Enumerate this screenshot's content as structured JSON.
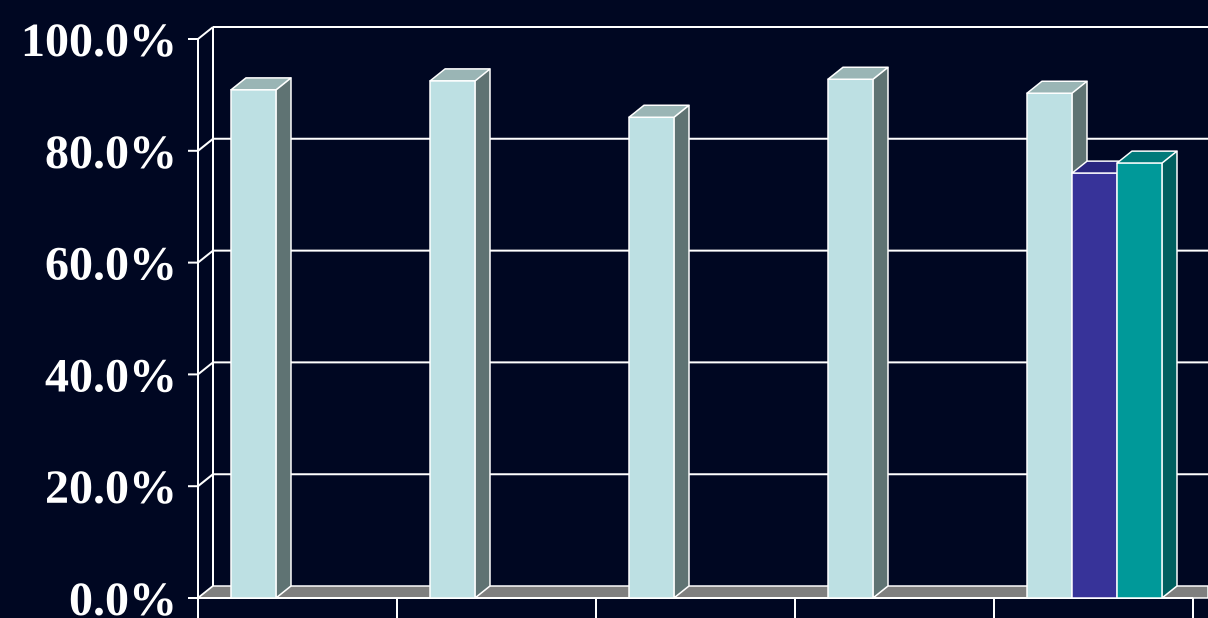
{
  "chart_data": {
    "type": "bar",
    "categories": [
      "",
      "",
      "",
      "",
      ""
    ],
    "series": [
      {
        "color": "#bde0e3",
        "side_color": "#5f7373",
        "top_color": "#9ab5b5",
        "values": [
          90.9,
          92.5,
          86.0,
          92.8,
          90.3
        ]
      },
      {
        "color": "#373399",
        "side_color": "#25226a",
        "top_color": "#2a2780",
        "values": [
          null,
          null,
          null,
          null,
          76.0
        ]
      },
      {
        "color": "#009999",
        "side_color": "#005f5f",
        "top_color": "#007a7a",
        "values": [
          null,
          null,
          null,
          null,
          77.8
        ]
      }
    ],
    "yticks": [
      "0.0%",
      "20.0%",
      "40.0%",
      "60.0%",
      "80.0%",
      "100.0%"
    ],
    "ylim": [
      0,
      100
    ],
    "grid": true,
    "three_d": true,
    "colors": {
      "background": "#000722",
      "grid": "#ffffff",
      "floor": "#7f7f7f",
      "text": "#ffffff"
    }
  }
}
